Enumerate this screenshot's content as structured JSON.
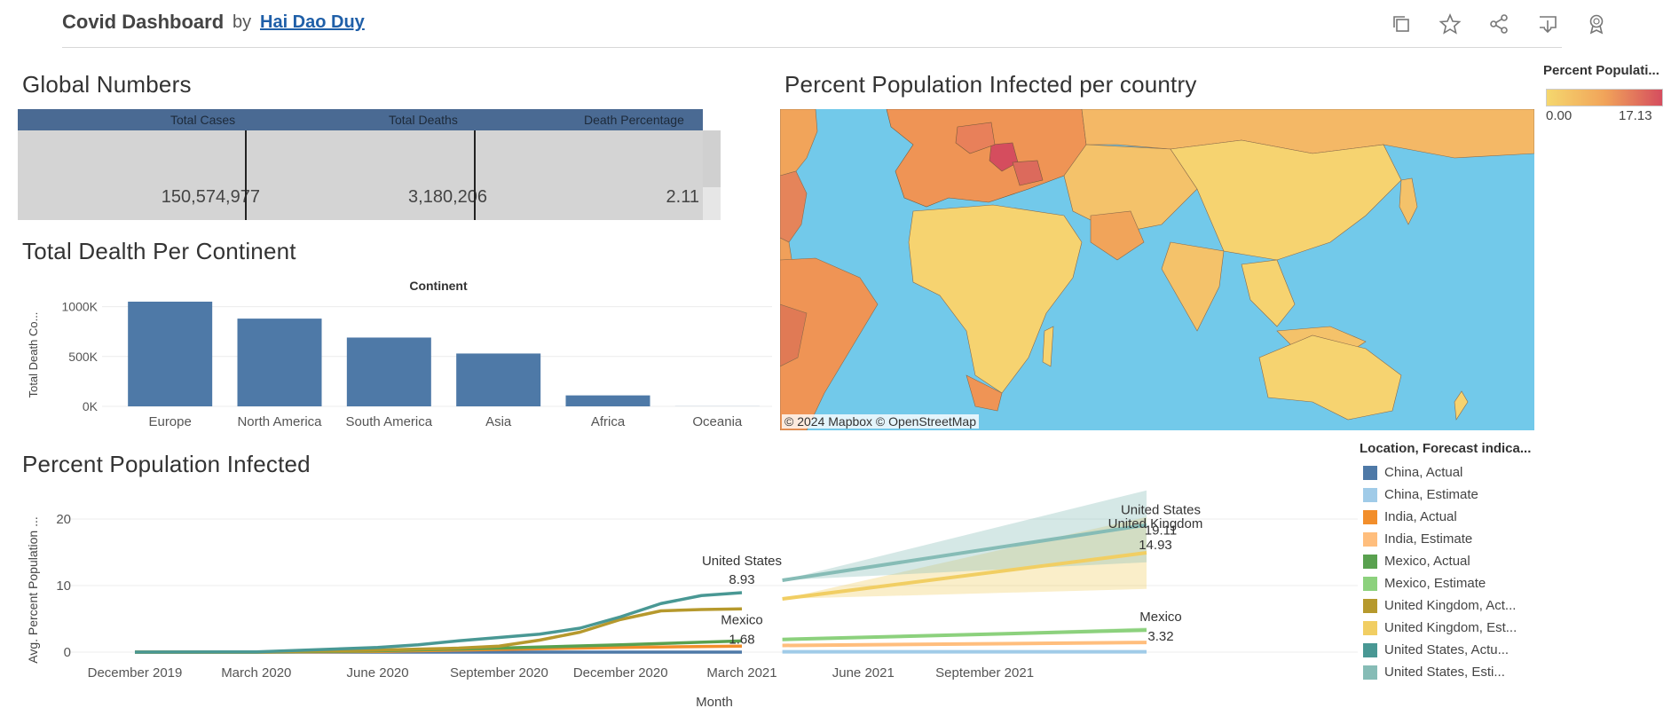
{
  "header": {
    "title": "Covid Dashboard",
    "by": "by",
    "author": "Hai Dao Duy",
    "icons": [
      "copy-icon",
      "star-icon",
      "share-icon",
      "download-icon",
      "badge-icon"
    ]
  },
  "global_numbers": {
    "title": "Global Numbers",
    "columns": [
      "Total Cases",
      "Total Deaths",
      "Death Percentage"
    ],
    "values": [
      "150,574,977",
      "3,180,206",
      "2.11"
    ]
  },
  "map": {
    "title": "Percent Population Infected per country",
    "attribution": "© 2024 Mapbox  © OpenStreetMap",
    "legend_title": "Percent Populati...",
    "legend_min": "0.00",
    "legend_max": "17.13",
    "colors": {
      "low": "#f5d76e",
      "mid": "#f1a45a",
      "high": "#d54d5e",
      "water": "#72c9ea"
    }
  },
  "chart_data": [
    {
      "type": "bar",
      "title": "Total Dealth Per Continent",
      "header": "Continent",
      "ylabel": "Total Death Co...",
      "categories": [
        "Europe",
        "North America",
        "South America",
        "Asia",
        "Africa",
        "Oceania"
      ],
      "values": [
        1050000,
        880000,
        690000,
        530000,
        110000,
        1000
      ],
      "yticks": [
        {
          "v": 1000000,
          "label": "1000K"
        },
        {
          "v": 500000,
          "label": "500K"
        },
        {
          "v": 0,
          "label": "0K"
        }
      ],
      "ylim": [
        0,
        1050000
      ],
      "color": "#4e79a7"
    },
    {
      "type": "line",
      "title": "Percent Population Infected",
      "xlabel": "Month",
      "ylabel": "Avg. Percent Population ...",
      "ylim": [
        0,
        24
      ],
      "yticks": [
        0,
        10,
        20
      ],
      "xticks": [
        "December 2019",
        "March 2020",
        "June 2020",
        "September 2020",
        "December 2020",
        "March 2021",
        "June 2021",
        "September 2021"
      ],
      "legend_title": "Location, Forecast indica...",
      "series": [
        {
          "name": "China, Actual",
          "color": "#4e79a7",
          "kind": "actual",
          "x": [
            0,
            3,
            6,
            9,
            12,
            15
          ],
          "y": [
            0,
            0,
            0,
            0,
            0,
            0
          ]
        },
        {
          "name": "China, Estimate",
          "color": "#a0cbe8",
          "kind": "estimate",
          "x": [
            16,
            25
          ],
          "y": [
            0.05,
            0.05
          ],
          "lo": [
            0.05,
            0.05
          ],
          "hi": [
            0.05,
            0.05
          ]
        },
        {
          "name": "India, Actual",
          "color": "#f28e2b",
          "kind": "actual",
          "x": [
            0,
            3,
            6,
            9,
            12,
            15
          ],
          "y": [
            0,
            0,
            0.1,
            0.4,
            0.7,
            0.9
          ]
        },
        {
          "name": "India, Estimate",
          "color": "#ffbe7d",
          "kind": "estimate",
          "x": [
            16,
            25
          ],
          "y": [
            1.0,
            1.45
          ],
          "lo": [
            1.0,
            1.3
          ],
          "hi": [
            1.0,
            1.6
          ]
        },
        {
          "name": "Mexico, Actual",
          "color": "#59a14f",
          "kind": "actual",
          "x": [
            0,
            3,
            6,
            9,
            12,
            15
          ],
          "y": [
            0,
            0,
            0.2,
            0.6,
            1.1,
            1.68
          ]
        },
        {
          "name": "Mexico, Estimate",
          "color": "#8cd17d",
          "kind": "estimate",
          "x": [
            16,
            25
          ],
          "y": [
            1.9,
            3.32
          ],
          "lo": [
            1.9,
            3.0
          ],
          "hi": [
            1.9,
            3.7
          ]
        },
        {
          "name": "United Kingdom, Actual",
          "color": "#b6992d",
          "kind": "actual",
          "x": [
            0,
            3,
            6,
            7,
            8,
            9,
            10,
            11,
            12,
            13,
            14,
            15
          ],
          "y": [
            0,
            0.02,
            0.3,
            0.45,
            0.6,
            0.9,
            1.8,
            3.0,
            4.9,
            6.2,
            6.4,
            6.5
          ]
        },
        {
          "name": "United Kingdom, Estimate",
          "color": "#f1ce63",
          "kind": "estimate",
          "x": [
            16,
            25
          ],
          "y": [
            8.0,
            14.93
          ],
          "lo": [
            8.0,
            9.5
          ],
          "hi": [
            8.0,
            20.3
          ]
        },
        {
          "name": "United States, Actual",
          "color": "#499894",
          "kind": "actual",
          "x": [
            0,
            3,
            6,
            7,
            8,
            9,
            10,
            11,
            12,
            13,
            14,
            15
          ],
          "y": [
            0,
            0.04,
            0.7,
            1.1,
            1.7,
            2.2,
            2.7,
            3.6,
            5.3,
            7.3,
            8.5,
            8.93
          ]
        },
        {
          "name": "United States, Estimate",
          "color": "#86bcb6",
          "kind": "estimate",
          "x": [
            16,
            25
          ],
          "y": [
            10.8,
            19.11
          ],
          "lo": [
            10.8,
            13.5
          ],
          "hi": [
            10.8,
            24.3
          ]
        }
      ],
      "annotations": [
        {
          "name": "United States",
          "value": "8.93"
        },
        {
          "name": "Mexico",
          "value": "1.68"
        },
        {
          "name": "United States",
          "value": "19.11"
        },
        {
          "name": "United Kingdom",
          "value": "14.93"
        },
        {
          "name": "Mexico",
          "value": "3.32"
        }
      ]
    }
  ]
}
